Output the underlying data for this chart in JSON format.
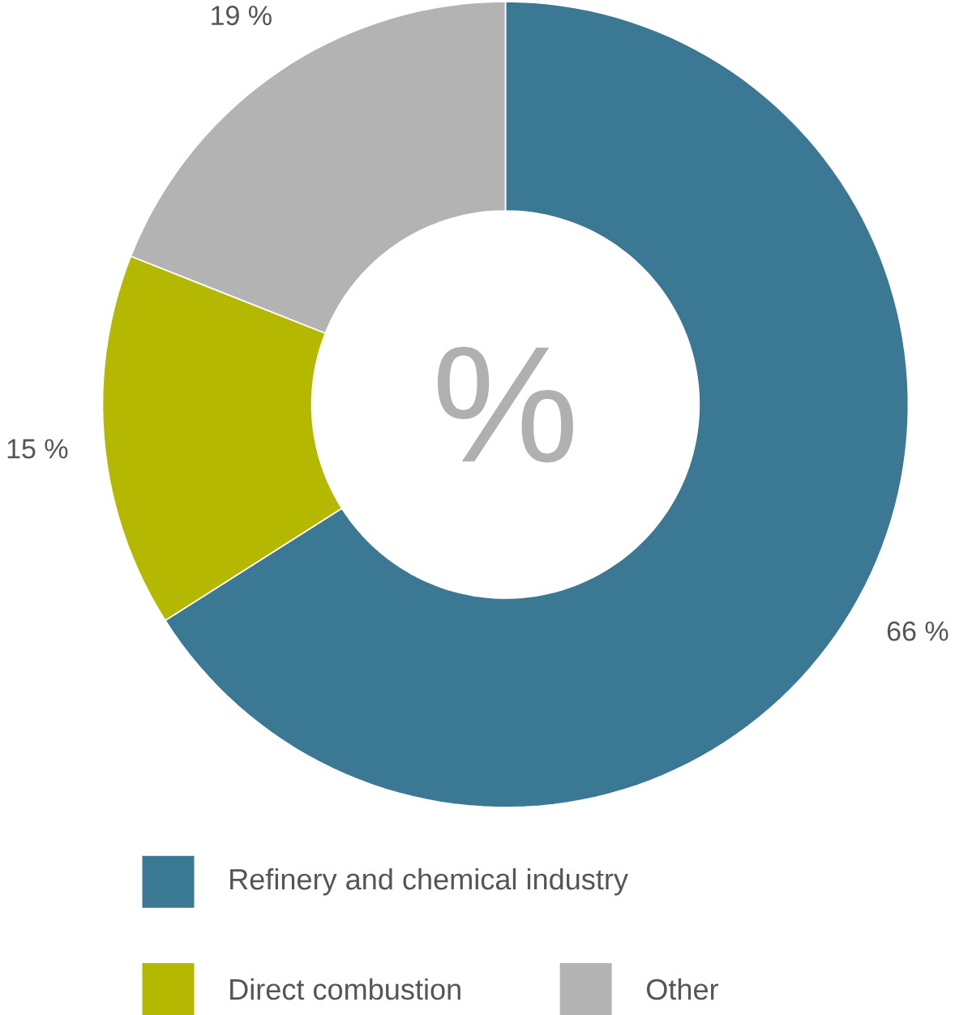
{
  "chart_data": {
    "type": "donut",
    "categories": [
      "Refinery and chemical industry",
      "Direct combustion",
      "Other"
    ],
    "values": [
      66,
      15,
      19
    ],
    "colors": [
      "#3a7893",
      "#b5b800",
      "#b3b3b3"
    ],
    "value_labels": [
      "66 %",
      "15 %",
      "19 %"
    ],
    "annotations": [
      "%"
    ],
    "legend": "bottom"
  }
}
